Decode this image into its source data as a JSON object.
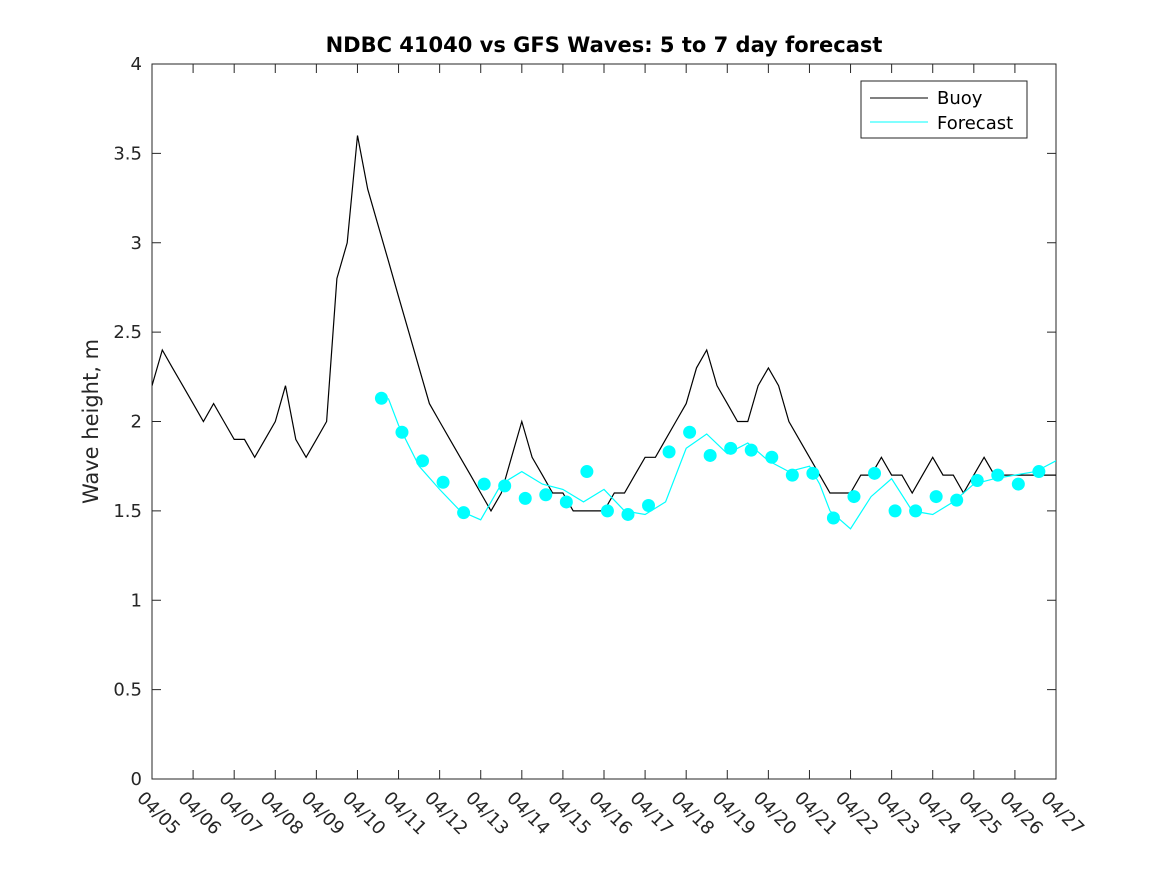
{
  "chart_data": {
    "type": "line",
    "title": "NDBC 41040 vs GFS Waves: 5 to 7 day forecast",
    "xlabel": "",
    "ylabel": "Wave height, m",
    "xlim": [
      "04/05",
      "04/27"
    ],
    "ylim": [
      0,
      4
    ],
    "x_ticks": [
      "04/05",
      "04/06",
      "04/07",
      "04/08",
      "04/09",
      "04/10",
      "04/11",
      "04/12",
      "04/13",
      "04/14",
      "04/15",
      "04/16",
      "04/17",
      "04/18",
      "04/19",
      "04/20",
      "04/21",
      "04/22",
      "04/23",
      "04/24",
      "04/25",
      "04/26",
      "04/27"
    ],
    "y_ticks": [
      "0",
      "0.5",
      "1",
      "1.5",
      "2",
      "2.5",
      "3",
      "3.5",
      "4"
    ],
    "grid": false,
    "legend_position": "top-right",
    "colors": {
      "buoy": "#000000",
      "forecast": "#00FFFF",
      "axis": "#262626"
    },
    "series": [
      {
        "name": "Buoy",
        "style": "line",
        "x": [
          "04/05 00:00",
          "04/05 06:00",
          "04/05 12:00",
          "04/05 18:00",
          "04/06 00:00",
          "04/06 06:00",
          "04/06 12:00",
          "04/06 18:00",
          "04/07 00:00",
          "04/07 06:00",
          "04/07 12:00",
          "04/07 18:00",
          "04/08 00:00",
          "04/08 06:00",
          "04/08 12:00",
          "04/08 18:00",
          "04/09 00:00",
          "04/09 06:00",
          "04/09 12:00",
          "04/09 18:00",
          "04/10 00:00",
          "04/10 06:00",
          "04/10 12:00",
          "04/10 18:00",
          "04/11 00:00",
          "04/11 06:00",
          "04/11 12:00",
          "04/11 18:00",
          "04/12 00:00",
          "04/12 06:00",
          "04/12 12:00",
          "04/12 18:00",
          "04/13 00:00",
          "04/13 06:00",
          "04/13 12:00",
          "04/13 18:00",
          "04/14 00:00",
          "04/14 06:00",
          "04/14 12:00",
          "04/14 18:00",
          "04/15 00:00",
          "04/15 06:00",
          "04/15 12:00",
          "04/15 18:00",
          "04/16 00:00",
          "04/16 06:00",
          "04/16 12:00",
          "04/16 18:00",
          "04/17 00:00",
          "04/17 06:00",
          "04/17 12:00",
          "04/17 18:00",
          "04/18 00:00",
          "04/18 06:00",
          "04/18 12:00",
          "04/18 18:00",
          "04/19 00:00",
          "04/19 06:00",
          "04/19 12:00",
          "04/19 18:00",
          "04/20 00:00",
          "04/20 06:00",
          "04/20 12:00",
          "04/20 18:00",
          "04/21 00:00",
          "04/21 06:00",
          "04/21 12:00",
          "04/21 18:00",
          "04/22 00:00",
          "04/22 06:00",
          "04/22 12:00",
          "04/22 18:00",
          "04/23 00:00",
          "04/23 06:00",
          "04/23 12:00",
          "04/23 18:00",
          "04/24 00:00",
          "04/24 06:00",
          "04/24 12:00",
          "04/24 18:00",
          "04/25 00:00",
          "04/25 06:00",
          "04/25 12:00",
          "04/25 18:00",
          "04/26 00:00",
          "04/26 06:00",
          "04/26 12:00",
          "04/26 18:00",
          "04/27 00:00"
        ],
        "values": [
          2.2,
          2.4,
          2.3,
          2.2,
          2.1,
          2.0,
          2.1,
          2.0,
          1.9,
          1.9,
          1.8,
          1.9,
          2.0,
          2.2,
          1.9,
          1.8,
          1.9,
          2.0,
          2.8,
          3.0,
          3.6,
          3.3,
          3.1,
          2.9,
          2.7,
          2.5,
          2.3,
          2.1,
          2.0,
          1.9,
          1.8,
          1.7,
          1.6,
          1.5,
          1.6,
          1.8,
          2.0,
          1.8,
          1.7,
          1.6,
          1.6,
          1.5,
          1.5,
          1.5,
          1.5,
          1.6,
          1.6,
          1.7,
          1.8,
          1.8,
          1.9,
          2.0,
          2.1,
          2.3,
          2.4,
          2.2,
          2.1,
          2.0,
          2.0,
          2.2,
          2.3,
          2.2,
          2.0,
          1.9,
          1.8,
          1.7,
          1.6,
          1.6,
          1.6,
          1.7,
          1.7,
          1.8,
          1.7,
          1.7,
          1.6,
          1.7,
          1.8,
          1.7,
          1.7,
          1.6,
          1.7,
          1.8,
          1.7,
          1.7,
          1.7,
          1.7,
          1.7,
          1.7,
          1.7
        ]
      },
      {
        "name": "Forecast",
        "style": "line",
        "x": [
          "04/10 18:00",
          "04/11 00:00",
          "04/11 12:00",
          "04/12 00:00",
          "04/12 12:00",
          "04/13 00:00",
          "04/13 12:00",
          "04/14 00:00",
          "04/14 12:00",
          "04/15 00:00",
          "04/15 12:00",
          "04/16 00:00",
          "04/16 12:00",
          "04/17 00:00",
          "04/17 12:00",
          "04/18 00:00",
          "04/18 12:00",
          "04/19 00:00",
          "04/19 12:00",
          "04/20 00:00",
          "04/20 12:00",
          "04/21 00:00",
          "04/21 06:00",
          "04/21 12:00",
          "04/22 00:00",
          "04/22 12:00",
          "04/23 00:00",
          "04/23 12:00",
          "04/24 00:00",
          "04/24 12:00",
          "04/25 00:00",
          "04/25 12:00",
          "04/26 00:00",
          "04/26 12:00",
          "04/27 00:00"
        ],
        "values": [
          2.13,
          1.98,
          1.75,
          1.62,
          1.5,
          1.45,
          1.65,
          1.72,
          1.65,
          1.62,
          1.55,
          1.62,
          1.5,
          1.48,
          1.55,
          1.85,
          1.93,
          1.82,
          1.88,
          1.78,
          1.72,
          1.75,
          1.65,
          1.5,
          1.4,
          1.58,
          1.68,
          1.5,
          1.48,
          1.55,
          1.65,
          1.68,
          1.7,
          1.72,
          1.78
        ]
      },
      {
        "name": "",
        "style": "markers",
        "x": [
          "04/10 14:00",
          "04/11 02:00",
          "04/11 14:00",
          "04/12 02:00",
          "04/12 14:00",
          "04/13 02:00",
          "04/13 14:00",
          "04/14 02:00",
          "04/14 14:00",
          "04/15 02:00",
          "04/15 14:00",
          "04/16 02:00",
          "04/16 14:00",
          "04/17 02:00",
          "04/17 14:00",
          "04/18 02:00",
          "04/18 14:00",
          "04/19 02:00",
          "04/19 14:00",
          "04/20 02:00",
          "04/20 14:00",
          "04/21 02:00",
          "04/21 14:00",
          "04/22 02:00",
          "04/22 14:00",
          "04/23 02:00",
          "04/23 14:00",
          "04/24 02:00",
          "04/24 14:00",
          "04/25 02:00",
          "04/25 14:00",
          "04/26 02:00",
          "04/26 14:00"
        ],
        "values": [
          2.13,
          1.94,
          1.78,
          1.66,
          1.49,
          1.65,
          1.64,
          1.57,
          1.59,
          1.55,
          1.72,
          1.5,
          1.48,
          1.53,
          1.83,
          1.94,
          1.81,
          1.85,
          1.84,
          1.8,
          1.7,
          1.71,
          1.46,
          1.58,
          1.71,
          1.5,
          1.5,
          1.58,
          1.56,
          1.67,
          1.7,
          1.65,
          1.72
        ]
      }
    ]
  }
}
